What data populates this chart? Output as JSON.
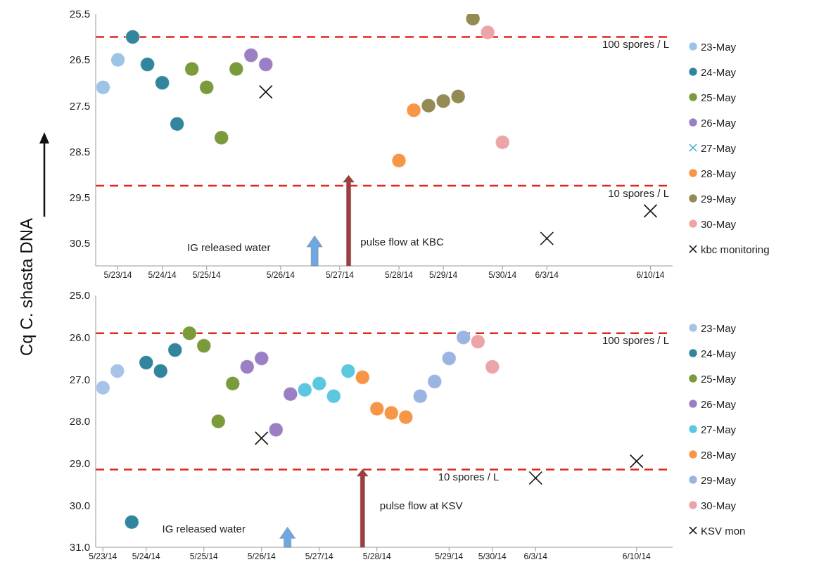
{
  "chart_data": [
    {
      "type": "scatter",
      "ylabel": "Cq C. shasta DNA",
      "marker": "circle",
      "legend": "right",
      "categories": [
        null,
        "5/23/14",
        null,
        null,
        "5/24/14",
        null,
        null,
        "5/25/14",
        null,
        null,
        null,
        null,
        "5/26/14",
        null,
        null,
        null,
        "5/27/14",
        null,
        null,
        null,
        "5/28/14",
        null,
        null,
        "5/29/14",
        null,
        null,
        null,
        "5/30/14",
        null,
        null,
        "6/3/14",
        null,
        null,
        null,
        null,
        null,
        null,
        "6/10/14",
        null
      ],
      "ylim": [
        31.0,
        25.5
      ],
      "yticks": [
        25.5,
        26.5,
        27.5,
        28.5,
        29.5,
        30.5
      ],
      "series": [
        {
          "name": "23-May",
          "color": "#9dc3e6",
          "values": [
            27.1,
            26.5,
            null,
            null,
            null,
            null,
            null,
            null,
            null,
            null,
            null,
            null,
            null,
            null,
            null,
            null,
            null,
            null,
            null,
            null,
            null,
            null,
            null,
            null,
            null,
            null,
            null,
            null,
            null,
            null,
            null,
            null,
            null,
            null,
            null,
            null,
            null,
            null,
            null
          ]
        },
        {
          "name": "24-May",
          "color": "#31859c",
          "values": [
            null,
            null,
            26.0,
            26.6,
            27.0,
            27.9,
            null,
            null,
            null,
            null,
            null,
            null,
            null,
            null,
            null,
            null,
            null,
            null,
            null,
            null,
            null,
            null,
            null,
            null,
            null,
            null,
            null,
            null,
            null,
            null,
            null,
            null,
            null,
            null,
            null,
            null,
            null,
            null,
            null
          ]
        },
        {
          "name": "25-May",
          "color": "#7a9a3c",
          "values": [
            null,
            null,
            null,
            null,
            null,
            null,
            26.7,
            27.1,
            28.2,
            26.7,
            null,
            null,
            null,
            null,
            null,
            null,
            null,
            null,
            null,
            null,
            null,
            null,
            null,
            null,
            null,
            null,
            null,
            null,
            null,
            null,
            null,
            null,
            null,
            null,
            null,
            null,
            null,
            null,
            null
          ]
        },
        {
          "name": "26-May",
          "color": "#9b7fc4",
          "values": [
            null,
            null,
            null,
            null,
            null,
            null,
            null,
            null,
            null,
            null,
            26.4,
            26.6,
            null,
            null,
            null,
            null,
            null,
            null,
            null,
            null,
            null,
            null,
            null,
            null,
            null,
            null,
            null,
            null,
            null,
            null,
            null,
            null,
            null,
            null,
            null,
            null,
            null,
            null,
            null
          ]
        },
        {
          "name": "27-May",
          "color": "#4bacc6",
          "marker": "cross",
          "values": [
            null,
            null,
            null,
            null,
            null,
            null,
            null,
            null,
            null,
            null,
            null,
            null,
            null,
            null,
            null,
            null,
            null,
            null,
            null,
            null,
            null,
            null,
            null,
            null,
            null,
            null,
            null,
            null,
            null,
            null,
            null,
            null,
            null,
            null,
            null,
            null,
            null,
            null,
            null
          ]
        },
        {
          "name": "28-May",
          "color": "#f79646",
          "values": [
            null,
            null,
            null,
            null,
            null,
            null,
            null,
            null,
            null,
            null,
            null,
            null,
            null,
            null,
            null,
            null,
            null,
            null,
            null,
            null,
            28.7,
            27.6,
            null,
            null,
            null,
            null,
            null,
            null,
            null,
            null,
            null,
            null,
            null,
            null,
            null,
            null,
            null,
            null,
            null
          ]
        },
        {
          "name": "29-May",
          "color": "#948a54",
          "values": [
            null,
            null,
            null,
            null,
            null,
            null,
            null,
            null,
            null,
            null,
            null,
            null,
            null,
            null,
            null,
            null,
            null,
            null,
            null,
            null,
            null,
            null,
            27.5,
            27.4,
            27.3,
            25.6,
            null,
            null,
            null,
            null,
            null,
            null,
            null,
            null,
            null,
            null,
            null,
            null,
            null
          ]
        },
        {
          "name": "30-May",
          "color": "#eba5a8",
          "values": [
            null,
            null,
            null,
            null,
            null,
            null,
            null,
            null,
            null,
            null,
            null,
            null,
            null,
            null,
            null,
            null,
            null,
            null,
            null,
            null,
            null,
            null,
            null,
            null,
            null,
            null,
            25.9,
            28.3,
            null,
            null,
            null,
            null,
            null,
            null,
            null,
            null,
            null,
            null,
            null
          ]
        },
        {
          "name": "kbc monitoring",
          "color": "#111111",
          "marker": "cross",
          "values": [
            null,
            null,
            null,
            null,
            null,
            null,
            null,
            null,
            null,
            null,
            null,
            27.2,
            null,
            null,
            null,
            null,
            null,
            null,
            null,
            null,
            null,
            null,
            null,
            null,
            null,
            null,
            null,
            null,
            null,
            null,
            30.4,
            null,
            null,
            null,
            null,
            null,
            null,
            29.8,
            null
          ]
        }
      ],
      "ref_lines": [
        {
          "axis": "y",
          "value": 26.0,
          "label": "100 spores / L",
          "color": "#e3261c",
          "line_style": "dashed"
        },
        {
          "axis": "y",
          "value": 29.25,
          "label": "10 spores / L",
          "color": "#e3261c",
          "line_style": "dashed"
        }
      ],
      "annotations": [
        "IG released water",
        "pulse flow at KBC"
      ]
    },
    {
      "type": "scatter",
      "marker": "circle",
      "legend": "right",
      "categories": [
        "5/23/14",
        null,
        null,
        "5/24/14",
        null,
        null,
        null,
        "5/25/14",
        null,
        null,
        null,
        "5/26/14",
        null,
        null,
        null,
        "5/27/14",
        null,
        null,
        null,
        "5/28/14",
        null,
        null,
        null,
        null,
        "5/29/14",
        null,
        null,
        "5/30/14",
        null,
        null,
        "6/3/14",
        null,
        null,
        null,
        null,
        null,
        null,
        "6/10/14",
        null,
        null
      ],
      "ylim": [
        31.0,
        25.0
      ],
      "yticks": [
        {
          "value": 25,
          "label": "25.0"
        },
        {
          "value": 26,
          "label": "26.0"
        },
        {
          "value": 27,
          "label": "27.0"
        },
        {
          "value": 28,
          "label": "28.0"
        },
        {
          "value": 29,
          "label": "29.0"
        },
        {
          "value": 30,
          "label": "30.0"
        },
        {
          "value": 31,
          "label": "31.0"
        }
      ],
      "series": [
        {
          "name": "23-May",
          "color": "#a7c3e8",
          "values": [
            27.2,
            26.8,
            null,
            null,
            null,
            null,
            null,
            null,
            null,
            null,
            null,
            null,
            null,
            null,
            null,
            null,
            null,
            null,
            null,
            null,
            null,
            null,
            null,
            null,
            null,
            null,
            null,
            null,
            null,
            null,
            null,
            null,
            null,
            null,
            null,
            null,
            null,
            null,
            null,
            null
          ]
        },
        {
          "name": "24-May",
          "color": "#31859c",
          "values": [
            null,
            null,
            30.4,
            26.6,
            26.8,
            26.3,
            null,
            null,
            null,
            null,
            null,
            null,
            null,
            null,
            null,
            null,
            null,
            null,
            null,
            null,
            null,
            null,
            null,
            null,
            null,
            null,
            null,
            null,
            null,
            null,
            null,
            null,
            null,
            null,
            null,
            null,
            null,
            null,
            null,
            null
          ]
        },
        {
          "name": "25-May",
          "color": "#7a9a3c",
          "values": [
            null,
            null,
            null,
            null,
            null,
            null,
            25.9,
            26.2,
            28.0,
            27.1,
            null,
            null,
            null,
            null,
            null,
            null,
            null,
            null,
            null,
            null,
            null,
            null,
            null,
            null,
            null,
            null,
            null,
            null,
            null,
            null,
            null,
            null,
            null,
            null,
            null,
            null,
            null,
            null,
            null,
            null
          ]
        },
        {
          "name": "26-May",
          "color": "#9b7fc4",
          "values": [
            null,
            null,
            null,
            null,
            null,
            null,
            null,
            null,
            null,
            null,
            26.7,
            26.5,
            28.2,
            27.35,
            null,
            null,
            null,
            null,
            null,
            null,
            null,
            null,
            null,
            null,
            null,
            null,
            null,
            null,
            null,
            null,
            null,
            null,
            null,
            null,
            null,
            null,
            null,
            null,
            null,
            null
          ]
        },
        {
          "name": "27-May",
          "color": "#5cc8e0",
          "values": [
            null,
            null,
            null,
            null,
            null,
            null,
            null,
            null,
            null,
            null,
            null,
            null,
            null,
            null,
            27.25,
            27.1,
            27.4,
            26.8,
            null,
            null,
            null,
            null,
            null,
            null,
            null,
            null,
            null,
            null,
            null,
            null,
            null,
            null,
            null,
            null,
            null,
            null,
            null,
            null,
            null,
            null
          ]
        },
        {
          "name": "28-May",
          "color": "#f79646",
          "values": [
            null,
            null,
            null,
            null,
            null,
            null,
            null,
            null,
            null,
            null,
            null,
            null,
            null,
            null,
            null,
            null,
            null,
            null,
            26.95,
            27.7,
            27.8,
            27.9,
            null,
            null,
            null,
            null,
            null,
            null,
            null,
            null,
            null,
            null,
            null,
            null,
            null,
            null,
            null,
            null,
            null,
            null
          ]
        },
        {
          "name": "29-May",
          "color": "#9bb5e3",
          "values": [
            null,
            null,
            null,
            null,
            null,
            null,
            null,
            null,
            null,
            null,
            null,
            null,
            null,
            null,
            null,
            null,
            null,
            null,
            null,
            null,
            null,
            null,
            27.4,
            27.05,
            26.5,
            26.0,
            null,
            null,
            null,
            null,
            null,
            null,
            null,
            null,
            null,
            null,
            null,
            null,
            null,
            null
          ]
        },
        {
          "name": "30-May",
          "color": "#eba5a8",
          "values": [
            null,
            null,
            null,
            null,
            null,
            null,
            null,
            null,
            null,
            null,
            null,
            null,
            null,
            null,
            null,
            null,
            null,
            null,
            null,
            null,
            null,
            null,
            null,
            null,
            null,
            null,
            26.1,
            26.7,
            null,
            null,
            null,
            null,
            null,
            null,
            null,
            null,
            null,
            null,
            null,
            null
          ]
        },
        {
          "name": "KSV mon",
          "color": "#111111",
          "marker": "cross",
          "values": [
            null,
            null,
            null,
            null,
            null,
            null,
            null,
            null,
            null,
            null,
            null,
            28.4,
            null,
            null,
            null,
            null,
            null,
            null,
            null,
            null,
            null,
            null,
            null,
            null,
            null,
            null,
            null,
            null,
            null,
            null,
            29.35,
            null,
            null,
            null,
            null,
            null,
            null,
            28.95,
            null,
            null
          ]
        }
      ],
      "ref_lines": [
        {
          "axis": "y",
          "value": 25.9,
          "label": "100 spores / L",
          "color": "#e3261c",
          "line_style": "dashed"
        },
        {
          "axis": "y",
          "value": 29.15,
          "label": "10 spores / L",
          "color": "#e3261c",
          "line_style": "dashed"
        }
      ],
      "annotations": [
        "IG released water",
        "pulse flow at KSV"
      ]
    }
  ]
}
